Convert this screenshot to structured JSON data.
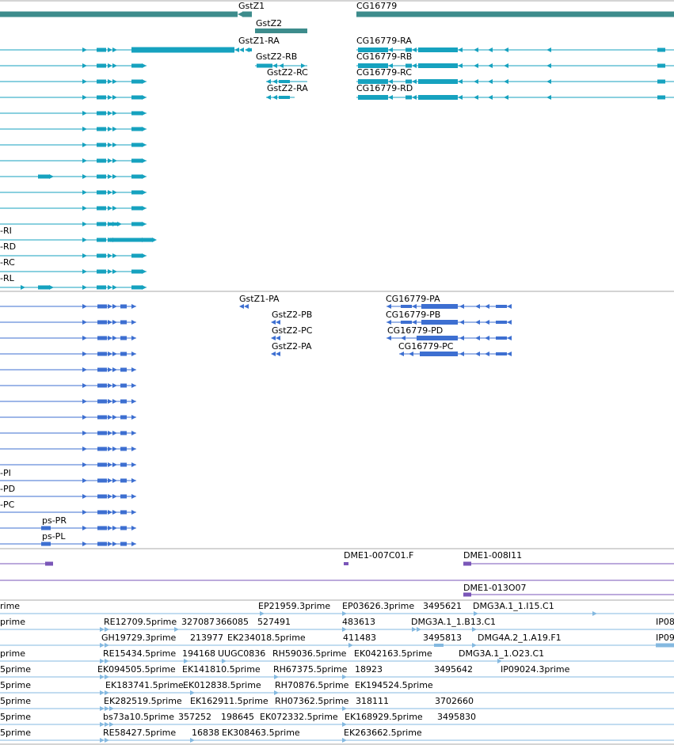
{
  "colors": {
    "gene": "#3d8c8c",
    "transcript": "#16a2bf",
    "protein": "#3d6fd1",
    "clone": "#7a56b8",
    "est": "#84b9e0",
    "divider": "#a8a8a8"
  },
  "gene_track": {
    "labels": [
      "GstZ1",
      "GstZ2",
      "CG16779"
    ]
  },
  "transcript_track": {
    "labels": [
      "GstZ1-RA",
      "GstZ2-RB",
      "GstZ2-RC",
      "GstZ2-RA",
      "CG16779-RA",
      "CG16779-RB",
      "CG16779-RC",
      "CG16779-RD",
      "-RI",
      "-RD",
      "-RC",
      "-RL"
    ]
  },
  "protein_track": {
    "labels": [
      "GstZ1-PA",
      "GstZ2-PB",
      "GstZ2-PC",
      "GstZ2-PA",
      "CG16779-PA",
      "CG16779-PB",
      "CG16779-PD",
      "CG16779-PC",
      "-PI",
      "-PD",
      "-PC",
      "ps-PR",
      "ps-PL"
    ]
  },
  "clone_track": {
    "labels": [
      "DME1-007C01.F",
      "DME1-008I11",
      "DME1-013O07"
    ]
  },
  "est_track": {
    "labels": [
      "EP21959.3prime",
      "EP03626.3prime",
      "3495621",
      "DMG3A.1_1.I15.C1",
      "IP08",
      "RE12709.5prime",
      "327087",
      "366085",
      "527491",
      "483613",
      "DMG3A.1_1.B13.C1",
      "IP09",
      "GH19729.3prime",
      "213977",
      "EK234018.5prime",
      "411483",
      "3495813",
      "DMG4A.2_1.A19.F1",
      "RE15434.5prime",
      "194168",
      "UUGC0836",
      "RH59036.5prime",
      "EK042163.5prime",
      "DMG3A.1_1.O23.C1",
      "EK094505.5prime",
      "EK141810.5prime",
      "RH67375.5prime",
      "18923",
      "3495642",
      "IP09024.3prime",
      "EK183741.5prime",
      "EK012838.5prime",
      "RH70876.5prime",
      "EK194524.5prime",
      "EK282519.5prime",
      "EK162911.5prime",
      "RH07362.5prime",
      "318111",
      "3702660",
      "bs73a10.5prime",
      "357252",
      "198645",
      "EK072332.5prime",
      "EK168929.5prime",
      "3495830",
      "RE58427.5prime",
      "16838",
      "EK308463.5prime",
      "EK263662.5prime",
      "rime",
      "prime",
      "prime",
      "5prime",
      "5prime",
      "5prime",
      "5prime",
      "5prime"
    ]
  }
}
